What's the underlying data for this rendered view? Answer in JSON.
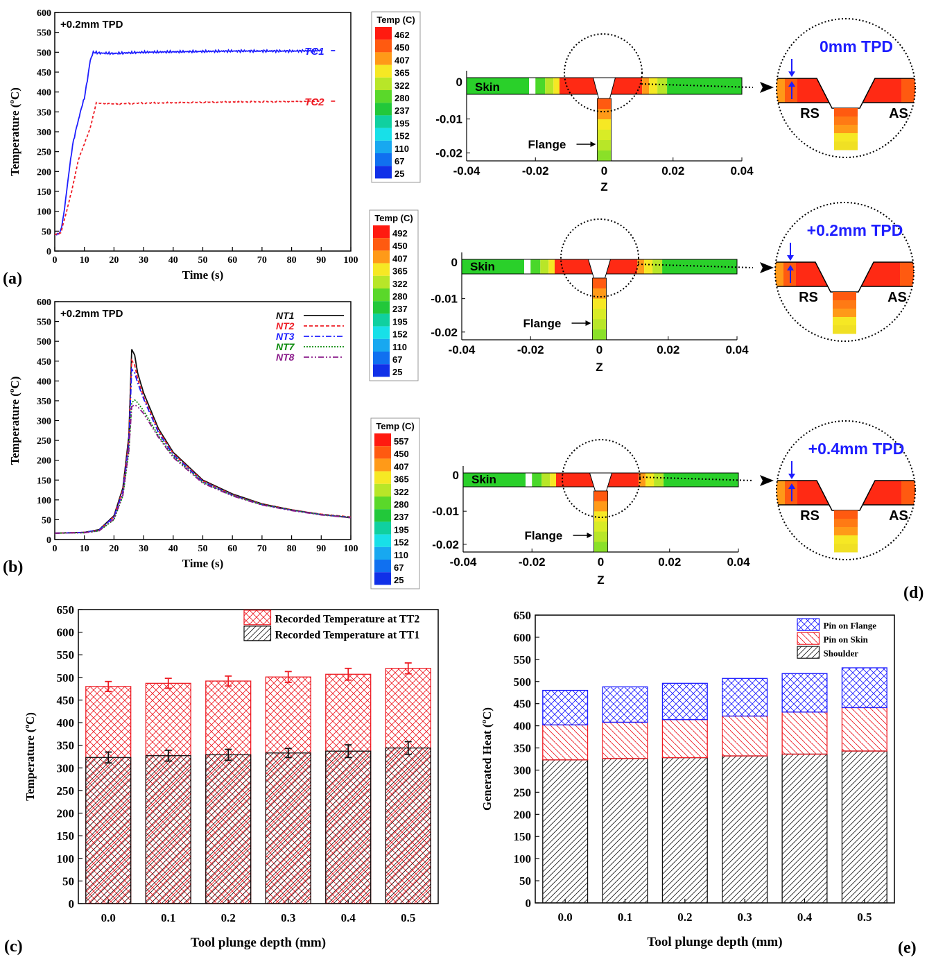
{
  "colors": {
    "red": "#ee1c24",
    "blue": "#1e1eff",
    "black": "#111111",
    "green": "#0a8a0a",
    "purple": "#8a1a8a"
  },
  "chart_data": [
    {
      "id": "a",
      "type": "line",
      "panel_label": "(a)",
      "annotation": "+0.2mm TPD",
      "xlabel": "Time (s)",
      "ylabel": "Temperature (°C)",
      "xlim": [
        0,
        100
      ],
      "ylim": [
        0,
        600
      ],
      "xticks": [
        0,
        10,
        20,
        30,
        40,
        50,
        60,
        70,
        80,
        90,
        100
      ],
      "yticks": [
        0,
        50,
        100,
        150,
        200,
        250,
        300,
        350,
        400,
        450,
        500,
        550,
        600
      ],
      "series": [
        {
          "name": "TC1",
          "color": "#1e1eff",
          "dash": "",
          "noise": 2,
          "points": [
            [
              0,
              42
            ],
            [
              1,
              42
            ],
            [
              2,
              50
            ],
            [
              3,
              90
            ],
            [
              4,
              150
            ],
            [
              5,
              210
            ],
            [
              6,
              265
            ],
            [
              7,
              300
            ],
            [
              8,
              330
            ],
            [
              9,
              360
            ],
            [
              10,
              385
            ],
            [
              11,
              430
            ],
            [
              12,
              480
            ],
            [
              13,
              500
            ],
            [
              15,
              498
            ],
            [
              20,
              497
            ],
            [
              30,
              500
            ],
            [
              40,
              501
            ],
            [
              50,
              502
            ],
            [
              60,
              503
            ],
            [
              70,
              503
            ],
            [
              80,
              503
            ],
            [
              90,
              504
            ]
          ]
        },
        {
          "name": "TC2",
          "color": "#ee1c24",
          "dash": "4,3",
          "noise": 1,
          "points": [
            [
              0,
              42
            ],
            [
              2,
              45
            ],
            [
              4,
              100
            ],
            [
              6,
              160
            ],
            [
              8,
              230
            ],
            [
              10,
              270
            ],
            [
              12,
              310
            ],
            [
              14,
              372
            ],
            [
              20,
              370
            ],
            [
              30,
              372
            ],
            [
              40,
              373
            ],
            [
              60,
              375
            ],
            [
              80,
              376
            ],
            [
              90,
              377
            ]
          ]
        }
      ]
    },
    {
      "id": "b",
      "type": "line",
      "panel_label": "(b)",
      "annotation": "+0.2mm TPD",
      "xlabel": "Time (s)",
      "ylabel": "Temperature (°C)",
      "xlim": [
        0,
        100
      ],
      "ylim": [
        0,
        600
      ],
      "xticks": [
        0,
        10,
        20,
        30,
        40,
        50,
        60,
        70,
        80,
        90,
        100
      ],
      "yticks": [
        0,
        50,
        100,
        150,
        200,
        250,
        300,
        350,
        400,
        450,
        500,
        550,
        600
      ],
      "series": [
        {
          "name": "NT1",
          "color": "#111111",
          "dash": "",
          "points": [
            [
              0,
              16
            ],
            [
              10,
              18
            ],
            [
              15,
              25
            ],
            [
              20,
              60
            ],
            [
              23,
              130
            ],
            [
              25,
              260
            ],
            [
              26,
              480
            ],
            [
              27,
              465
            ],
            [
              28,
              420
            ],
            [
              30,
              370
            ],
            [
              35,
              280
            ],
            [
              40,
              220
            ],
            [
              50,
              150
            ],
            [
              60,
              115
            ],
            [
              70,
              90
            ],
            [
              80,
              75
            ],
            [
              90,
              63
            ],
            [
              100,
              55
            ]
          ]
        },
        {
          "name": "NT2",
          "color": "#ee1c24",
          "dash": "5,3",
          "points": [
            [
              0,
              16
            ],
            [
              10,
              18
            ],
            [
              15,
              24
            ],
            [
              20,
              58
            ],
            [
              23,
              125
            ],
            [
              25,
              250
            ],
            [
              26,
              452
            ],
            [
              27,
              440
            ],
            [
              28,
              405
            ],
            [
              30,
              360
            ],
            [
              35,
              275
            ],
            [
              40,
              217
            ],
            [
              50,
              148
            ],
            [
              60,
              113
            ],
            [
              70,
              89
            ],
            [
              80,
              75
            ],
            [
              90,
              64
            ],
            [
              100,
              57
            ]
          ]
        },
        {
          "name": "NT3",
          "color": "#1e1eff",
          "dash": "8,3,2,3",
          "points": [
            [
              0,
              16
            ],
            [
              10,
              18
            ],
            [
              15,
              24
            ],
            [
              20,
              57
            ],
            [
              23,
              120
            ],
            [
              25,
              240
            ],
            [
              26,
              430
            ],
            [
              27,
              420
            ],
            [
              28,
              395
            ],
            [
              30,
              355
            ],
            [
              35,
              270
            ],
            [
              40,
              214
            ],
            [
              50,
              146
            ],
            [
              60,
              112
            ],
            [
              70,
              88
            ],
            [
              80,
              74
            ],
            [
              90,
              63
            ],
            [
              100,
              56
            ]
          ]
        },
        {
          "name": "NT7",
          "color": "#0a8a0a",
          "dash": "2,2",
          "points": [
            [
              0,
              16
            ],
            [
              10,
              17
            ],
            [
              15,
              22
            ],
            [
              20,
              50
            ],
            [
              23,
              110
            ],
            [
              25,
              220
            ],
            [
              26,
              345
            ],
            [
              27,
              352
            ],
            [
              28,
              345
            ],
            [
              30,
              325
            ],
            [
              35,
              262
            ],
            [
              40,
              210
            ],
            [
              50,
              144
            ],
            [
              60,
              111
            ],
            [
              70,
              88
            ],
            [
              80,
              74
            ],
            [
              90,
              63
            ],
            [
              100,
              56
            ]
          ]
        },
        {
          "name": "NT8",
          "color": "#8a1a8a",
          "dash": "8,3,2,3,2,3",
          "points": [
            [
              0,
              16
            ],
            [
              10,
              17
            ],
            [
              15,
              22
            ],
            [
              20,
              52
            ],
            [
              23,
              112
            ],
            [
              25,
              225
            ],
            [
              26,
              335
            ],
            [
              27,
              340
            ],
            [
              28,
              335
            ],
            [
              30,
              318
            ],
            [
              35,
              258
            ],
            [
              40,
              207
            ],
            [
              50,
              142
            ],
            [
              60,
              110
            ],
            [
              70,
              87
            ],
            [
              80,
              73
            ],
            [
              90,
              62
            ],
            [
              100,
              55
            ]
          ]
        }
      ]
    },
    {
      "id": "c",
      "type": "bar",
      "panel_label": "(c)",
      "xlabel": "Tool plunge depth (mm)",
      "ylabel": "Temperature (°C)",
      "ylim": [
        0,
        650
      ],
      "yticks": [
        0,
        50,
        100,
        150,
        200,
        250,
        300,
        350,
        400,
        450,
        500,
        550,
        600,
        650
      ],
      "categories": [
        "0.0",
        "0.1",
        "0.2",
        "0.3",
        "0.4",
        "0.5"
      ],
      "series": [
        {
          "name": "Recorded Temperature at TT1",
          "values": [
            323,
            327,
            329,
            333,
            337,
            344
          ],
          "errors": [
            12,
            12,
            12,
            10,
            14,
            14
          ],
          "color": "#111111",
          "pattern": "hatch-black"
        },
        {
          "name": "Recorded Temperature at TT2",
          "values": [
            480,
            487,
            492,
            501,
            507,
            520
          ],
          "errors": [
            11,
            11,
            11,
            12,
            13,
            12
          ],
          "color": "#ee1c24",
          "pattern": "cross-red"
        }
      ]
    },
    {
      "id": "e",
      "type": "bar",
      "stacked": true,
      "panel_label": "(e)",
      "xlabel": "Tool plunge depth (mm)",
      "ylabel": "Generated Heat (°C)",
      "ylim": [
        0,
        650
      ],
      "yticks": [
        0,
        50,
        100,
        150,
        200,
        250,
        300,
        350,
        400,
        450,
        500,
        550,
        600,
        650
      ],
      "categories": [
        "0.0",
        "0.1",
        "0.2",
        "0.3",
        "0.4",
        "0.5"
      ],
      "series": [
        {
          "name": "Shoulder",
          "values": [
            323,
            326,
            328,
            332,
            336,
            343
          ],
          "color": "#111111",
          "pattern": "hatch-black"
        },
        {
          "name": "Pin on Skin",
          "values": [
            79,
            82,
            86,
            90,
            95,
            98
          ],
          "color": "#ee1c24",
          "pattern": "hatch-red"
        },
        {
          "name": "Pin on Flange",
          "values": [
            78,
            80,
            82,
            85,
            87,
            90
          ],
          "color": "#1e1eff",
          "pattern": "cross-blue"
        }
      ]
    },
    {
      "id": "d",
      "type": "heatmap",
      "panel_label": "(d)",
      "xlabel": "Z",
      "xlim": [
        -0.04,
        0.04
      ],
      "ylim": [
        -0.023,
        0.001
      ],
      "xticks": [
        "-0.04",
        "-0.02",
        "0",
        "0.02",
        "0.04"
      ],
      "yticks": [
        "0",
        "-0.01",
        "-0.02"
      ],
      "legend_title": "Temp (C)",
      "labels": {
        "skin": "Skin",
        "flange": "Flange",
        "rs": "RS",
        "as": "AS"
      },
      "scale_colors": [
        "#ff1a10",
        "#ff5a10",
        "#ff9a18",
        "#f6e824",
        "#b8e628",
        "#5ad82a",
        "#22c83a",
        "#10d0a0",
        "#18e0e8",
        "#18a8f0",
        "#1070f0",
        "#1030e8"
      ],
      "maps": [
        {
          "tpd": "0mm TPD",
          "scale": [
            "462",
            "450",
            "407",
            "365",
            "322",
            "280",
            "237",
            "195",
            "152",
            "110",
            "67",
            "25"
          ]
        },
        {
          "tpd": "+0.2mm TPD",
          "scale": [
            "492",
            "450",
            "407",
            "365",
            "322",
            "280",
            "237",
            "195",
            "152",
            "110",
            "67",
            "25"
          ]
        },
        {
          "tpd": "+0.4mm TPD",
          "scale": [
            "557",
            "450",
            "407",
            "365",
            "322",
            "280",
            "237",
            "195",
            "152",
            "110",
            "67",
            "25"
          ]
        }
      ]
    }
  ]
}
